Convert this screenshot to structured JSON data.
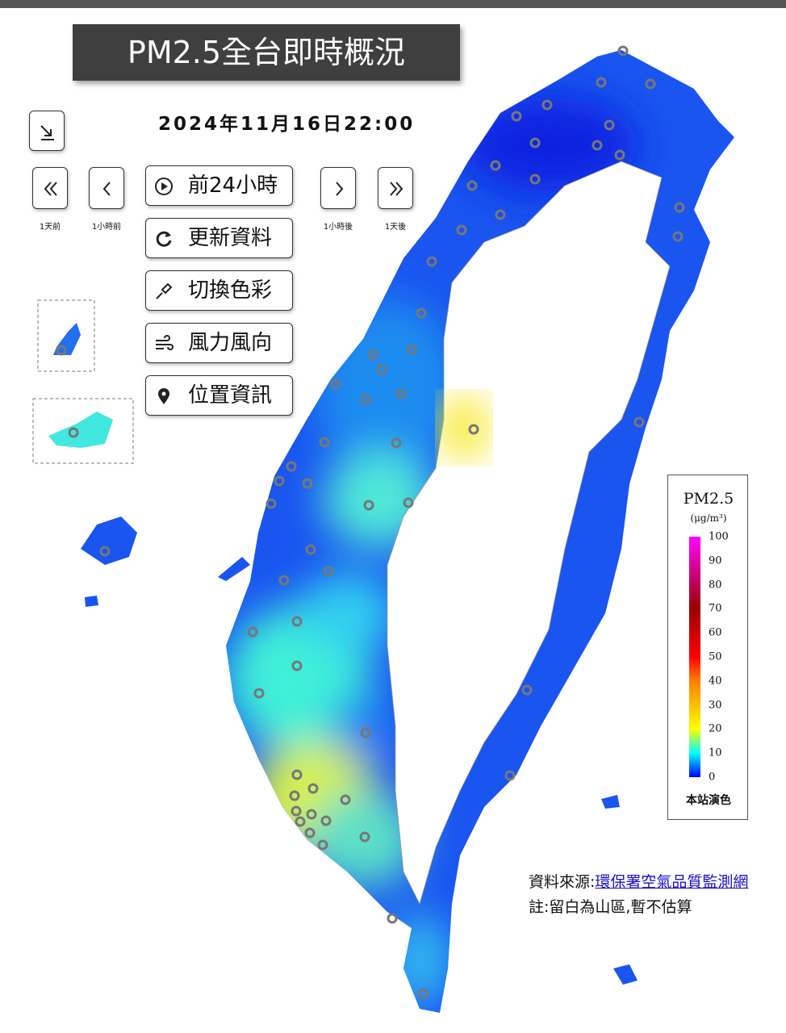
{
  "header": {
    "title": "PM2.5全台即時概況",
    "datetime": "2024年11月16日22:00"
  },
  "navigation": [
    "1天前",
    "1小時前",
    "1小時後",
    "1天後"
  ],
  "menu": [
    "前24小時",
    "更新資料",
    "切換色彩",
    "風力風向",
    "位置資訊"
  ],
  "legend": {
    "title": "PM2.5",
    "unit": "(μg/m³)",
    "range": [
      0,
      100
    ],
    "ticks": [
      0,
      10,
      20,
      30,
      40,
      50,
      60,
      70,
      80,
      90,
      100
    ],
    "footer": "本站演色"
  },
  "notes": {
    "source_label": "資料來源:",
    "source_link": "環保署空氣品質監測網",
    "note": "註:留白為山區,暫不估算"
  }
}
